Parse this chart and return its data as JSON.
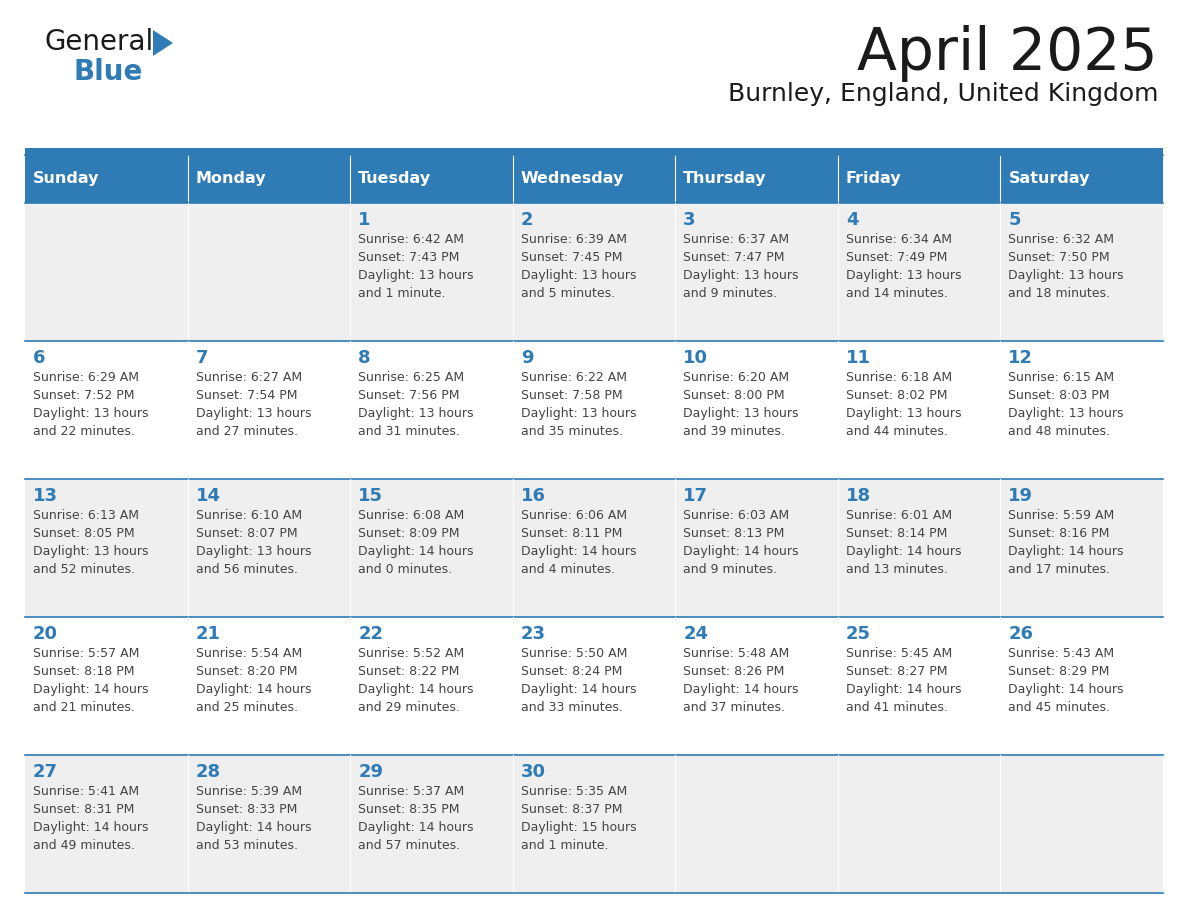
{
  "title": "April 2025",
  "subtitle": "Burnley, England, United Kingdom",
  "header_bg": "#2E7BB5",
  "header_text_color": "#FFFFFF",
  "day_names": [
    "Sunday",
    "Monday",
    "Tuesday",
    "Wednesday",
    "Thursday",
    "Friday",
    "Saturday"
  ],
  "row_bg_odd": "#EFEFEF",
  "row_bg_even": "#FFFFFF",
  "cell_border_color": "#2E7BB5",
  "day_number_color": "#2E7BB5",
  "text_color": "#444444",
  "calendar_data": [
    [
      {
        "day": "",
        "sunrise": "",
        "sunset": "",
        "daylight": ""
      },
      {
        "day": "",
        "sunrise": "",
        "sunset": "",
        "daylight": ""
      },
      {
        "day": "1",
        "sunrise": "Sunrise: 6:42 AM",
        "sunset": "Sunset: 7:43 PM",
        "daylight": "Daylight: 13 hours\nand 1 minute."
      },
      {
        "day": "2",
        "sunrise": "Sunrise: 6:39 AM",
        "sunset": "Sunset: 7:45 PM",
        "daylight": "Daylight: 13 hours\nand 5 minutes."
      },
      {
        "day": "3",
        "sunrise": "Sunrise: 6:37 AM",
        "sunset": "Sunset: 7:47 PM",
        "daylight": "Daylight: 13 hours\nand 9 minutes."
      },
      {
        "day": "4",
        "sunrise": "Sunrise: 6:34 AM",
        "sunset": "Sunset: 7:49 PM",
        "daylight": "Daylight: 13 hours\nand 14 minutes."
      },
      {
        "day": "5",
        "sunrise": "Sunrise: 6:32 AM",
        "sunset": "Sunset: 7:50 PM",
        "daylight": "Daylight: 13 hours\nand 18 minutes."
      }
    ],
    [
      {
        "day": "6",
        "sunrise": "Sunrise: 6:29 AM",
        "sunset": "Sunset: 7:52 PM",
        "daylight": "Daylight: 13 hours\nand 22 minutes."
      },
      {
        "day": "7",
        "sunrise": "Sunrise: 6:27 AM",
        "sunset": "Sunset: 7:54 PM",
        "daylight": "Daylight: 13 hours\nand 27 minutes."
      },
      {
        "day": "8",
        "sunrise": "Sunrise: 6:25 AM",
        "sunset": "Sunset: 7:56 PM",
        "daylight": "Daylight: 13 hours\nand 31 minutes."
      },
      {
        "day": "9",
        "sunrise": "Sunrise: 6:22 AM",
        "sunset": "Sunset: 7:58 PM",
        "daylight": "Daylight: 13 hours\nand 35 minutes."
      },
      {
        "day": "10",
        "sunrise": "Sunrise: 6:20 AM",
        "sunset": "Sunset: 8:00 PM",
        "daylight": "Daylight: 13 hours\nand 39 minutes."
      },
      {
        "day": "11",
        "sunrise": "Sunrise: 6:18 AM",
        "sunset": "Sunset: 8:02 PM",
        "daylight": "Daylight: 13 hours\nand 44 minutes."
      },
      {
        "day": "12",
        "sunrise": "Sunrise: 6:15 AM",
        "sunset": "Sunset: 8:03 PM",
        "daylight": "Daylight: 13 hours\nand 48 minutes."
      }
    ],
    [
      {
        "day": "13",
        "sunrise": "Sunrise: 6:13 AM",
        "sunset": "Sunset: 8:05 PM",
        "daylight": "Daylight: 13 hours\nand 52 minutes."
      },
      {
        "day": "14",
        "sunrise": "Sunrise: 6:10 AM",
        "sunset": "Sunset: 8:07 PM",
        "daylight": "Daylight: 13 hours\nand 56 minutes."
      },
      {
        "day": "15",
        "sunrise": "Sunrise: 6:08 AM",
        "sunset": "Sunset: 8:09 PM",
        "daylight": "Daylight: 14 hours\nand 0 minutes."
      },
      {
        "day": "16",
        "sunrise": "Sunrise: 6:06 AM",
        "sunset": "Sunset: 8:11 PM",
        "daylight": "Daylight: 14 hours\nand 4 minutes."
      },
      {
        "day": "17",
        "sunrise": "Sunrise: 6:03 AM",
        "sunset": "Sunset: 8:13 PM",
        "daylight": "Daylight: 14 hours\nand 9 minutes."
      },
      {
        "day": "18",
        "sunrise": "Sunrise: 6:01 AM",
        "sunset": "Sunset: 8:14 PM",
        "daylight": "Daylight: 14 hours\nand 13 minutes."
      },
      {
        "day": "19",
        "sunrise": "Sunrise: 5:59 AM",
        "sunset": "Sunset: 8:16 PM",
        "daylight": "Daylight: 14 hours\nand 17 minutes."
      }
    ],
    [
      {
        "day": "20",
        "sunrise": "Sunrise: 5:57 AM",
        "sunset": "Sunset: 8:18 PM",
        "daylight": "Daylight: 14 hours\nand 21 minutes."
      },
      {
        "day": "21",
        "sunrise": "Sunrise: 5:54 AM",
        "sunset": "Sunset: 8:20 PM",
        "daylight": "Daylight: 14 hours\nand 25 minutes."
      },
      {
        "day": "22",
        "sunrise": "Sunrise: 5:52 AM",
        "sunset": "Sunset: 8:22 PM",
        "daylight": "Daylight: 14 hours\nand 29 minutes."
      },
      {
        "day": "23",
        "sunrise": "Sunrise: 5:50 AM",
        "sunset": "Sunset: 8:24 PM",
        "daylight": "Daylight: 14 hours\nand 33 minutes."
      },
      {
        "day": "24",
        "sunrise": "Sunrise: 5:48 AM",
        "sunset": "Sunset: 8:26 PM",
        "daylight": "Daylight: 14 hours\nand 37 minutes."
      },
      {
        "day": "25",
        "sunrise": "Sunrise: 5:45 AM",
        "sunset": "Sunset: 8:27 PM",
        "daylight": "Daylight: 14 hours\nand 41 minutes."
      },
      {
        "day": "26",
        "sunrise": "Sunrise: 5:43 AM",
        "sunset": "Sunset: 8:29 PM",
        "daylight": "Daylight: 14 hours\nand 45 minutes."
      }
    ],
    [
      {
        "day": "27",
        "sunrise": "Sunrise: 5:41 AM",
        "sunset": "Sunset: 8:31 PM",
        "daylight": "Daylight: 14 hours\nand 49 minutes."
      },
      {
        "day": "28",
        "sunrise": "Sunrise: 5:39 AM",
        "sunset": "Sunset: 8:33 PM",
        "daylight": "Daylight: 14 hours\nand 53 minutes."
      },
      {
        "day": "29",
        "sunrise": "Sunrise: 5:37 AM",
        "sunset": "Sunset: 8:35 PM",
        "daylight": "Daylight: 14 hours\nand 57 minutes."
      },
      {
        "day": "30",
        "sunrise": "Sunrise: 5:35 AM",
        "sunset": "Sunset: 8:37 PM",
        "daylight": "Daylight: 15 hours\nand 1 minute."
      },
      {
        "day": "",
        "sunrise": "",
        "sunset": "",
        "daylight": ""
      },
      {
        "day": "",
        "sunrise": "",
        "sunset": "",
        "daylight": ""
      },
      {
        "day": "",
        "sunrise": "",
        "sunset": "",
        "daylight": ""
      }
    ]
  ],
  "logo_general_color": "#1a1a1a",
  "logo_blue_color": "#2E7BB5",
  "title_color": "#1a1a1a",
  "subtitle_color": "#1a1a1a"
}
